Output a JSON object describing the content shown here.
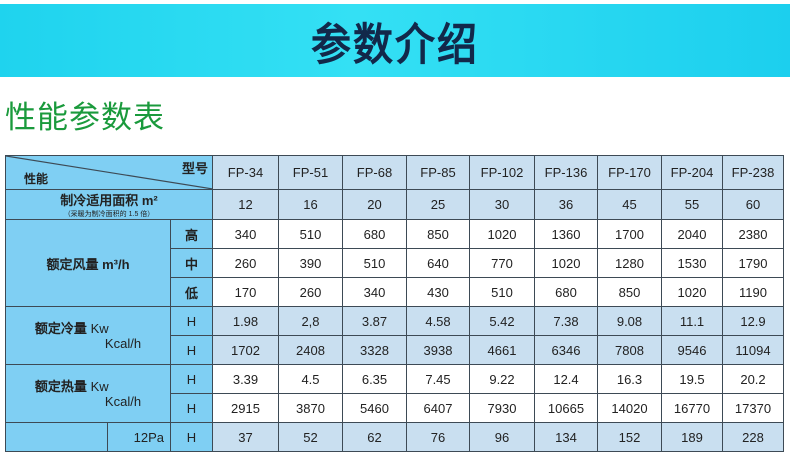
{
  "banner": {
    "title": "参数介绍"
  },
  "section_title": "性能参数表",
  "table": {
    "corner_model": "型号",
    "corner_perf": "性能",
    "models": [
      "FP-34",
      "FP-51",
      "FP-68",
      "FP-85",
      "FP-102",
      "FP-136",
      "FP-170",
      "FP-204",
      "FP-238"
    ],
    "area": {
      "label": "制冷适用面积 m²",
      "note": "（采暖为制冷面积的 1.5 倍）",
      "values": [
        "12",
        "16",
        "20",
        "25",
        "30",
        "36",
        "45",
        "55",
        "60"
      ]
    },
    "airflow": {
      "label": "额定风量 m³/h",
      "rows": [
        {
          "sub": "高",
          "values": [
            "340",
            "510",
            "680",
            "850",
            "1020",
            "1360",
            "1700",
            "2040",
            "2380"
          ]
        },
        {
          "sub": "中",
          "values": [
            "260",
            "390",
            "510",
            "640",
            "770",
            "1020",
            "1280",
            "1530",
            "1790"
          ]
        },
        {
          "sub": "低",
          "values": [
            "170",
            "260",
            "340",
            "430",
            "510",
            "680",
            "850",
            "1020",
            "1190"
          ]
        }
      ]
    },
    "cooling": {
      "label": "额定冷量",
      "unit1": "Kw",
      "unit2": "Kcal/h",
      "rows": [
        {
          "sub": "H",
          "values": [
            "1.98",
            "2,8",
            "3.87",
            "4.58",
            "5.42",
            "7.38",
            "9.08",
            "11.1",
            "12.9"
          ]
        },
        {
          "sub": "H",
          "values": [
            "1702",
            "2408",
            "3328",
            "3938",
            "4661",
            "6346",
            "7808",
            "9546",
            "11094"
          ]
        }
      ]
    },
    "heating": {
      "label": "额定热量",
      "unit1": "Kw",
      "unit2": "Kcal/h",
      "rows": [
        {
          "sub": "H",
          "values": [
            "3.39",
            "4.5",
            "6.35",
            "7.45",
            "9.22",
            "12.4",
            "16.3",
            "19.5",
            "20.2"
          ]
        },
        {
          "sub": "H",
          "values": [
            "2915",
            "3870",
            "5460",
            "6407",
            "7930",
            "10665",
            "14020",
            "16770",
            "17370"
          ]
        }
      ]
    },
    "pressure": {
      "label": "12Pa",
      "sub": "H",
      "values": [
        "37",
        "52",
        "62",
        "76",
        "96",
        "134",
        "152",
        "189",
        "228"
      ]
    }
  }
}
